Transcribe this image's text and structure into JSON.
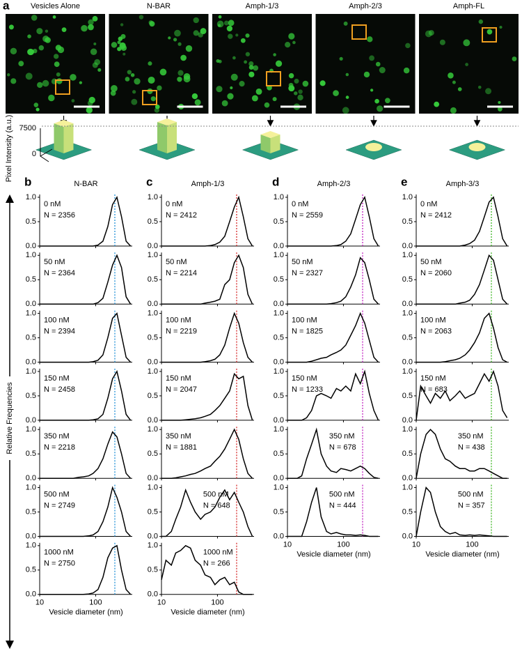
{
  "panel_a": {
    "letter": "a",
    "images": [
      "Vesicles Alone",
      "N-BAR",
      "Amph-1/3",
      "Amph-2/3",
      "Amph-FL"
    ],
    "y_label": "Pixel Intensity (a.u.)",
    "ticks": [
      "7500",
      "0"
    ]
  },
  "chart_data": [
    {
      "type": "line",
      "panel": "b",
      "title": "N-BAR",
      "y_label": "Relative Frequencies",
      "x_label": "Vesicle diameter (nm)",
      "log_x": true,
      "x": [
        10,
        12,
        15,
        18,
        22,
        27,
        33,
        40,
        50,
        60,
        75,
        90,
        110,
        135,
        165,
        200,
        240,
        290,
        350,
        420
      ],
      "xlim": [
        10,
        450
      ],
      "xticks": [
        10,
        100
      ],
      "ylim": [
        0,
        1
      ],
      "yticks": [
        {
          "value": 0,
          "label": "0.0"
        },
        {
          "value": 0.5,
          "label": "0.5"
        },
        {
          "value": 1,
          "label": "1.0"
        }
      ],
      "reference_x": 220,
      "reference_color": "#1f8fd6",
      "color": "#000000",
      "series": [
        {
          "name": "0 nM",
          "label": "N = 2356",
          "values": [
            0,
            0,
            0,
            0,
            0,
            0,
            0,
            0,
            0,
            0,
            0,
            0,
            0.02,
            0.1,
            0.4,
            0.85,
            1.0,
            0.6,
            0.1,
            0
          ]
        },
        {
          "name": "50 nM",
          "label": "N = 2364",
          "values": [
            0,
            0,
            0,
            0,
            0,
            0,
            0,
            0,
            0,
            0,
            0,
            0,
            0.03,
            0.12,
            0.45,
            0.8,
            1.0,
            0.75,
            0.15,
            0
          ]
        },
        {
          "name": "100 nM",
          "label": "N = 2394",
          "values": [
            0,
            0,
            0,
            0,
            0,
            0,
            0,
            0,
            0,
            0,
            0,
            0.01,
            0.04,
            0.15,
            0.5,
            0.9,
            1.0,
            0.55,
            0.1,
            0
          ]
        },
        {
          "name": "150 nM",
          "label": "N = 2458",
          "values": [
            0,
            0,
            0,
            0,
            0,
            0,
            0,
            0,
            0,
            0,
            0,
            0.01,
            0.03,
            0.12,
            0.45,
            0.85,
            1.0,
            0.6,
            0.12,
            0
          ]
        },
        {
          "name": "350 nM",
          "label": "N = 2218",
          "values": [
            0,
            0,
            0,
            0,
            0,
            0,
            0,
            0,
            0.02,
            0.03,
            0.05,
            0.1,
            0.2,
            0.4,
            0.7,
            0.95,
            0.85,
            0.5,
            0.1,
            0
          ]
        },
        {
          "name": "500 nM",
          "label": "N = 2749",
          "values": [
            0,
            0,
            0,
            0,
            0,
            0,
            0,
            0,
            0,
            0,
            0.01,
            0.03,
            0.1,
            0.3,
            0.6,
            1.0,
            0.8,
            0.5,
            0.1,
            0
          ]
        },
        {
          "name": "1000 nM",
          "label": "N = 2750",
          "values": [
            0,
            0,
            0,
            0,
            0,
            0,
            0,
            0,
            0,
            0,
            0.01,
            0.03,
            0.1,
            0.35,
            0.75,
            0.95,
            1.0,
            0.5,
            0.1,
            0
          ]
        }
      ]
    },
    {
      "type": "line",
      "panel": "c",
      "title": "Amph-1/3",
      "x_label": "Vesicle diameter (nm)",
      "log_x": true,
      "x": [
        10,
        12,
        15,
        18,
        22,
        27,
        33,
        40,
        50,
        60,
        75,
        90,
        110,
        135,
        165,
        200,
        240,
        290,
        350,
        420
      ],
      "xlim": [
        10,
        450
      ],
      "xticks": [
        10,
        100
      ],
      "ylim": [
        0,
        1
      ],
      "yticks": [
        {
          "value": 0,
          "label": "0.0"
        },
        {
          "value": 0.5,
          "label": "0.5"
        },
        {
          "value": 1,
          "label": "1.0"
        }
      ],
      "reference_x": 220,
      "reference_color": "#d62728",
      "color": "#000000",
      "series": [
        {
          "name": "0 nM",
          "label": "N = 2412",
          "values": [
            0,
            0,
            0,
            0,
            0,
            0,
            0,
            0,
            0,
            0,
            0.01,
            0.03,
            0.08,
            0.2,
            0.5,
            0.8,
            1.0,
            0.6,
            0.15,
            0
          ]
        },
        {
          "name": "50 nM",
          "label": "N = 2214",
          "values": [
            0,
            0,
            0,
            0,
            0,
            0,
            0,
            0,
            0,
            0.02,
            0.04,
            0.06,
            0.1,
            0.4,
            0.5,
            0.85,
            1.0,
            0.75,
            0.2,
            0
          ]
        },
        {
          "name": "100 nM",
          "label": "N = 2219",
          "values": [
            0,
            0,
            0,
            0,
            0,
            0,
            0,
            0,
            0,
            0.01,
            0.03,
            0.06,
            0.15,
            0.35,
            0.7,
            1.0,
            0.8,
            0.4,
            0.1,
            0
          ]
        },
        {
          "name": "150 nM",
          "label": "N = 2047",
          "values": [
            0,
            0,
            0,
            0,
            0,
            0.01,
            0.02,
            0.03,
            0.05,
            0.08,
            0.12,
            0.2,
            0.3,
            0.45,
            0.6,
            0.95,
            0.85,
            0.9,
            0.3,
            0
          ]
        },
        {
          "name": "350 nM",
          "label": "N = 1881",
          "values": [
            0,
            0,
            0,
            0.01,
            0.03,
            0.05,
            0.08,
            0.1,
            0.15,
            0.2,
            0.25,
            0.35,
            0.45,
            0.6,
            0.8,
            1.0,
            0.8,
            0.4,
            0.1,
            0
          ]
        },
        {
          "name": "500 nM",
          "label": "N = 648",
          "values": [
            0,
            0,
            0.1,
            0.35,
            0.6,
            0.95,
            0.7,
            0.5,
            0.35,
            0.45,
            0.5,
            0.6,
            0.8,
            0.95,
            0.75,
            0.9,
            0.7,
            0.5,
            0.2,
            0
          ]
        },
        {
          "name": "1000 nM",
          "label": "N = 266",
          "values": [
            0.3,
            0.7,
            0.6,
            0.85,
            0.9,
            1.0,
            0.95,
            0.7,
            0.6,
            0.4,
            0.35,
            0.2,
            0.3,
            0.35,
            0.2,
            0.25,
            0.05,
            0,
            0,
            0
          ]
        }
      ]
    },
    {
      "type": "line",
      "panel": "d",
      "title": "Amph-2/3",
      "x_label": "Vesicle diameter (nm)",
      "log_x": true,
      "x": [
        10,
        12,
        15,
        18,
        22,
        27,
        33,
        40,
        50,
        60,
        75,
        90,
        110,
        135,
        165,
        200,
        240,
        290,
        350,
        420
      ],
      "xlim": [
        10,
        450
      ],
      "xticks": [
        10,
        100
      ],
      "ylim": [
        0,
        1
      ],
      "yticks": [
        {
          "value": 0,
          "label": "0.0"
        },
        {
          "value": 0.5,
          "label": "0.5"
        },
        {
          "value": 1,
          "label": "1.0"
        }
      ],
      "reference_x": 220,
      "reference_color": "#c020c0",
      "color": "#000000",
      "series": [
        {
          "name": "0 nM",
          "label": "N = 2559",
          "values": [
            0,
            0,
            0,
            0,
            0,
            0,
            0,
            0,
            0,
            0,
            0.01,
            0.03,
            0.1,
            0.25,
            0.55,
            0.85,
            1.0,
            0.6,
            0.15,
            0
          ]
        },
        {
          "name": "50 nM",
          "label": "N = 2327",
          "values": [
            0,
            0,
            0,
            0,
            0,
            0,
            0,
            0,
            0,
            0.01,
            0.03,
            0.06,
            0.15,
            0.35,
            0.6,
            0.95,
            0.85,
            0.5,
            0.1,
            0
          ]
        },
        {
          "name": "100 nM",
          "label": "N = 1825",
          "values": [
            0,
            0,
            0,
            0,
            0,
            0.02,
            0.05,
            0.08,
            0.1,
            0.15,
            0.2,
            0.25,
            0.35,
            0.55,
            0.75,
            1.0,
            0.8,
            0.45,
            0.1,
            0
          ]
        },
        {
          "name": "150 nM",
          "label": "N = 1233",
          "values": [
            0,
            0,
            0,
            0,
            0.05,
            0.2,
            0.5,
            0.55,
            0.5,
            0.45,
            0.65,
            0.6,
            0.7,
            0.6,
            0.95,
            0.75,
            1.0,
            0.55,
            0.2,
            0
          ]
        },
        {
          "name": "350 nM",
          "label": "N = 678",
          "values": [
            0,
            0,
            0,
            0.05,
            0.4,
            0.7,
            1.0,
            0.5,
            0.25,
            0.15,
            0.12,
            0.2,
            0.18,
            0.15,
            0.2,
            0.25,
            0.2,
            0.1,
            0.02,
            0
          ]
        },
        {
          "name": "500 nM",
          "label": "N = 444",
          "values": [
            0,
            0,
            0,
            0,
            0.3,
            0.7,
            1.0,
            0.4,
            0.1,
            0.05,
            0.08,
            0.05,
            0.03,
            0.03,
            0.02,
            0.03,
            0.02,
            0,
            0,
            0
          ]
        }
      ]
    },
    {
      "type": "line",
      "panel": "e",
      "title": "Amph-3/3",
      "x_label": "Vesicle diameter (nm)",
      "log_x": true,
      "x": [
        10,
        12,
        15,
        18,
        22,
        27,
        33,
        40,
        50,
        60,
        75,
        90,
        110,
        135,
        165,
        200,
        240,
        290,
        350,
        420
      ],
      "xlim": [
        10,
        450
      ],
      "xticks": [
        10,
        100
      ],
      "ylim": [
        0,
        1
      ],
      "yticks": [
        {
          "value": 0,
          "label": "0.0"
        },
        {
          "value": 0.5,
          "label": "0.5"
        },
        {
          "value": 1,
          "label": "1.0"
        }
      ],
      "reference_x": 220,
      "reference_color": "#3cb521",
      "color": "#000000",
      "series": [
        {
          "name": "0 nM",
          "label": "N = 2412",
          "values": [
            0,
            0,
            0,
            0,
            0,
            0,
            0,
            0,
            0,
            0,
            0.02,
            0.05,
            0.12,
            0.3,
            0.6,
            0.9,
            1.0,
            0.6,
            0.15,
            0
          ]
        },
        {
          "name": "50 nM",
          "label": "N = 2060",
          "values": [
            0,
            0,
            0,
            0,
            0,
            0,
            0,
            0,
            0,
            0.02,
            0.04,
            0.08,
            0.2,
            0.4,
            0.7,
            1.0,
            0.9,
            0.5,
            0.1,
            0
          ]
        },
        {
          "name": "100 nM",
          "label": "N = 2063",
          "values": [
            0,
            0,
            0,
            0,
            0,
            0,
            0.01,
            0.03,
            0.05,
            0.08,
            0.15,
            0.25,
            0.4,
            0.6,
            0.9,
            1.0,
            0.7,
            0.3,
            0.05,
            0
          ]
        },
        {
          "name": "150 nM",
          "label": "N = 683",
          "values": [
            0,
            0.7,
            0.5,
            0.35,
            0.55,
            0.45,
            0.6,
            0.4,
            0.5,
            0.6,
            0.45,
            0.5,
            0.55,
            0.75,
            0.95,
            0.8,
            1.0,
            0.7,
            0.2,
            0.05
          ]
        },
        {
          "name": "350 nM",
          "label": "N = 438",
          "values": [
            0,
            0.5,
            0.9,
            1.0,
            0.9,
            0.6,
            0.4,
            0.35,
            0.25,
            0.2,
            0.2,
            0.15,
            0.15,
            0.2,
            0.2,
            0.15,
            0.1,
            0.05,
            0,
            0
          ]
        },
        {
          "name": "500 nM",
          "label": "N = 357",
          "values": [
            0,
            0.5,
            1.0,
            0.9,
            0.5,
            0.2,
            0.1,
            0.05,
            0.08,
            0.03,
            0.02,
            0.03,
            0.02,
            0.03,
            0.02,
            0.01,
            0,
            0,
            0,
            0
          ]
        }
      ]
    }
  ]
}
